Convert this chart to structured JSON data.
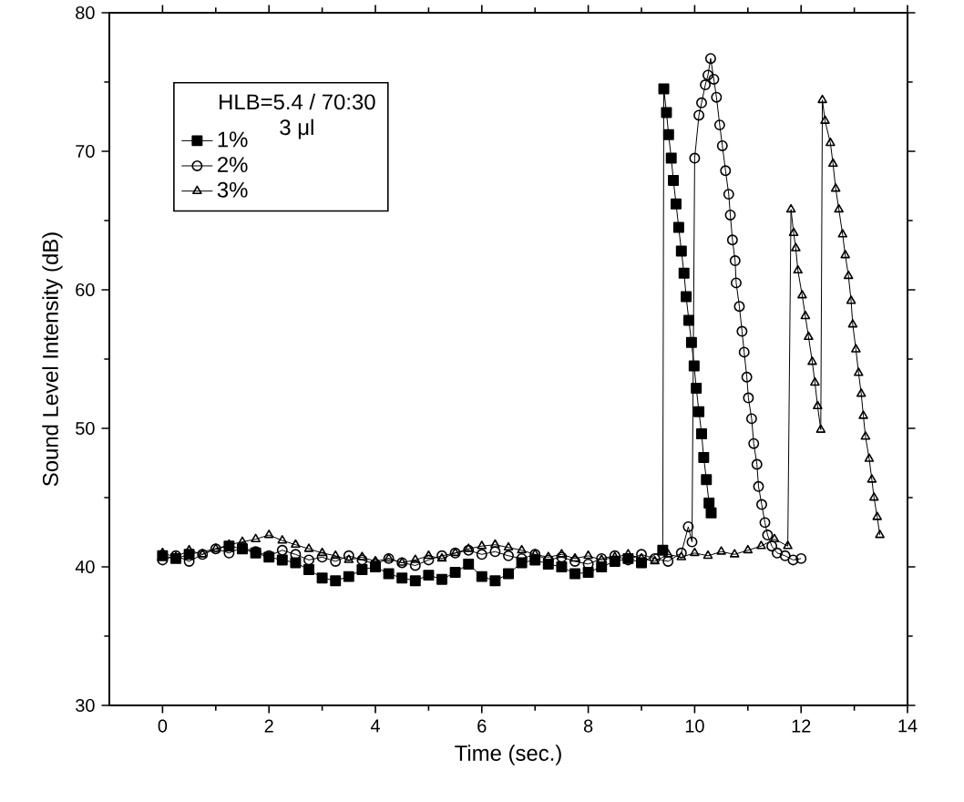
{
  "chart_data": {
    "type": "line",
    "xlabel": "Time (sec.)",
    "ylabel": "Sound Level Intensity (dB)",
    "legend_title": "HLB=5.4 / 70:30 3 μl",
    "legend": "top left",
    "grid": false,
    "line_style": "solid",
    "xlim": [
      -1,
      14
    ],
    "xticks": [
      0,
      2,
      4,
      6,
      8,
      10,
      12,
      14
    ],
    "ylim": [
      30,
      80
    ],
    "yticks": [
      30,
      40,
      50,
      60,
      70,
      80
    ],
    "series": [
      {
        "name": "1%",
        "color": "#000000",
        "marker": "square",
        "x": [
          0,
          0.25,
          0.5,
          0.75,
          1,
          1.25,
          1.5,
          1.75,
          2,
          2.25,
          2.5,
          2.75,
          3,
          3.25,
          3.5,
          3.75,
          4,
          4.25,
          4.5,
          4.75,
          5,
          5.25,
          5.5,
          5.75,
          6,
          6.25,
          6.5,
          6.75,
          7,
          7.25,
          7.5,
          7.75,
          8,
          8.25,
          8.5,
          8.75,
          9,
          9.25,
          9.4,
          9.42,
          9.47,
          9.51,
          9.56,
          9.6,
          9.65,
          9.7,
          9.75,
          9.8,
          9.84,
          9.89,
          9.94,
          9.99,
          10.03,
          10.08,
          10.13,
          10.17,
          10.22,
          10.27,
          10.31
        ],
        "values": [
          40.8,
          40.6,
          40.9,
          null,
          null,
          41.5,
          41.3,
          41.0,
          40.7,
          40.5,
          40.3,
          39.8,
          39.2,
          39.0,
          39.3,
          39.8,
          40.0,
          39.5,
          39.2,
          39.0,
          39.4,
          39.1,
          39.6,
          40.2,
          39.3,
          39.0,
          39.5,
          40.3,
          40.5,
          40.2,
          40.0,
          39.5,
          39.6,
          40.0,
          40.4,
          40.6,
          40.3,
          null,
          41.2,
          74.5,
          72.8,
          71.2,
          69.5,
          67.9,
          66.2,
          64.5,
          62.8,
          61.2,
          59.5,
          57.8,
          56.2,
          54.5,
          52.9,
          51.2,
          49.6,
          47.9,
          46.3,
          44.6,
          43.9
        ]
      },
      {
        "name": "2%",
        "color": "#000000",
        "marker": "circle",
        "x": [
          0,
          0.25,
          0.5,
          0.75,
          1,
          1.25,
          1.5,
          1.75,
          2,
          2.25,
          2.5,
          2.75,
          3,
          3.25,
          3.5,
          3.75,
          4,
          4.25,
          4.5,
          4.75,
          5,
          5.25,
          5.5,
          5.75,
          6,
          6.25,
          6.5,
          6.75,
          7,
          7.25,
          7.5,
          7.75,
          8,
          8.25,
          8.5,
          8.75,
          9,
          9.25,
          9.5,
          9.75,
          9.88,
          9.95,
          10.0,
          10.08,
          10.13,
          10.2,
          10.25,
          10.3,
          10.36,
          10.41,
          10.47,
          10.52,
          10.58,
          10.64,
          10.67,
          10.71,
          10.76,
          10.78,
          10.84,
          10.89,
          10.93,
          10.98,
          11.01,
          11.07,
          11.11,
          11.17,
          11.2,
          11.26,
          11.32,
          11.37,
          11.45,
          11.55,
          11.7,
          11.85,
          12.0
        ],
        "values": [
          40.5,
          40.8,
          40.4,
          40.9,
          41.3,
          41.0,
          41.4,
          41.1,
          40.8,
          41.2,
          40.9,
          40.5,
          40.7,
          40.4,
          40.8,
          40.5,
          40.2,
          40.6,
          40.3,
          40.1,
          40.5,
          40.8,
          41.0,
          41.2,
          40.9,
          41.1,
          40.8,
          40.6,
          40.9,
          40.5,
          40.7,
          40.4,
          40.2,
          40.6,
          40.8,
          40.5,
          40.9,
          40.6,
          40.4,
          41.0,
          42.9,
          41.8,
          69.5,
          72.6,
          73.5,
          74.8,
          75.5,
          76.7,
          75.2,
          73.9,
          71.9,
          70.4,
          68.6,
          66.9,
          65.4,
          63.6,
          62.1,
          60.5,
          58.8,
          57.0,
          55.5,
          53.7,
          52.2,
          50.7,
          48.9,
          47.4,
          45.8,
          44.5,
          43.2,
          42.3,
          41.5,
          41.0,
          40.8,
          40.5,
          40.6
        ]
      },
      {
        "name": "3%",
        "color": "#000000",
        "marker": "triangle",
        "x": [
          0,
          0.25,
          0.5,
          0.75,
          1,
          1.25,
          1.5,
          1.75,
          2,
          2.25,
          2.5,
          2.75,
          3,
          3.25,
          3.5,
          3.75,
          4,
          4.25,
          4.5,
          4.75,
          5,
          5.25,
          5.5,
          5.75,
          6,
          6.25,
          6.5,
          6.75,
          7,
          7.25,
          7.5,
          7.75,
          8,
          8.25,
          8.5,
          8.75,
          9,
          9.25,
          9.5,
          9.75,
          10,
          10.25,
          10.5,
          10.75,
          11,
          11.25,
          11.5,
          11.75,
          11.81,
          11.86,
          11.9,
          11.94,
          12.02,
          12.08,
          12.14,
          12.21,
          12.26,
          12.31,
          12.37,
          12.4,
          12.45,
          12.55,
          12.6,
          12.65,
          12.71,
          12.78,
          12.83,
          12.89,
          12.94,
          12.97,
          13.03,
          13.08,
          13.13,
          13.17,
          13.21,
          13.28,
          13.33,
          13.37,
          13.43,
          13.48
        ],
        "values": [
          41.0,
          40.7,
          41.2,
          40.9,
          41.3,
          41.6,
          41.8,
          42.0,
          42.3,
          41.9,
          41.6,
          41.3,
          41.0,
          40.8,
          40.5,
          40.7,
          40.4,
          40.6,
          40.3,
          40.5,
          40.8,
          40.6,
          41.0,
          41.3,
          41.5,
          41.6,
          41.4,
          41.2,
          40.9,
          40.7,
          40.9,
          40.6,
          40.8,
          40.5,
          40.7,
          40.9,
          40.6,
          40.4,
          40.9,
          40.7,
          41.0,
          40.8,
          41.1,
          40.9,
          41.2,
          41.5,
          42.0,
          41.5,
          65.8,
          64.1,
          63.0,
          61.4,
          59.6,
          58.1,
          56.6,
          54.8,
          53.3,
          51.6,
          49.9,
          73.7,
          72.2,
          70.6,
          69.1,
          67.3,
          65.8,
          64.0,
          62.5,
          61.0,
          59.2,
          57.5,
          55.7,
          54.0,
          52.5,
          50.9,
          49.4,
          47.8,
          46.3,
          45.0,
          43.6,
          42.3
        ]
      }
    ]
  }
}
